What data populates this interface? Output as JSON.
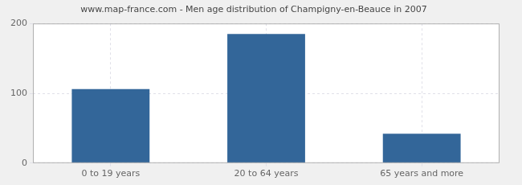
{
  "chart_data": {
    "type": "bar",
    "title": "www.map-france.com - Men age distribution of Champigny-en-Beauce in 2007",
    "categories": [
      "0 to 19 years",
      "20 to 64 years",
      "65 years and more"
    ],
    "values": [
      106,
      185,
      42
    ],
    "color": "#336699",
    "ylim": [
      0,
      200
    ],
    "yticks": [
      0,
      100,
      200
    ],
    "grid": true
  }
}
